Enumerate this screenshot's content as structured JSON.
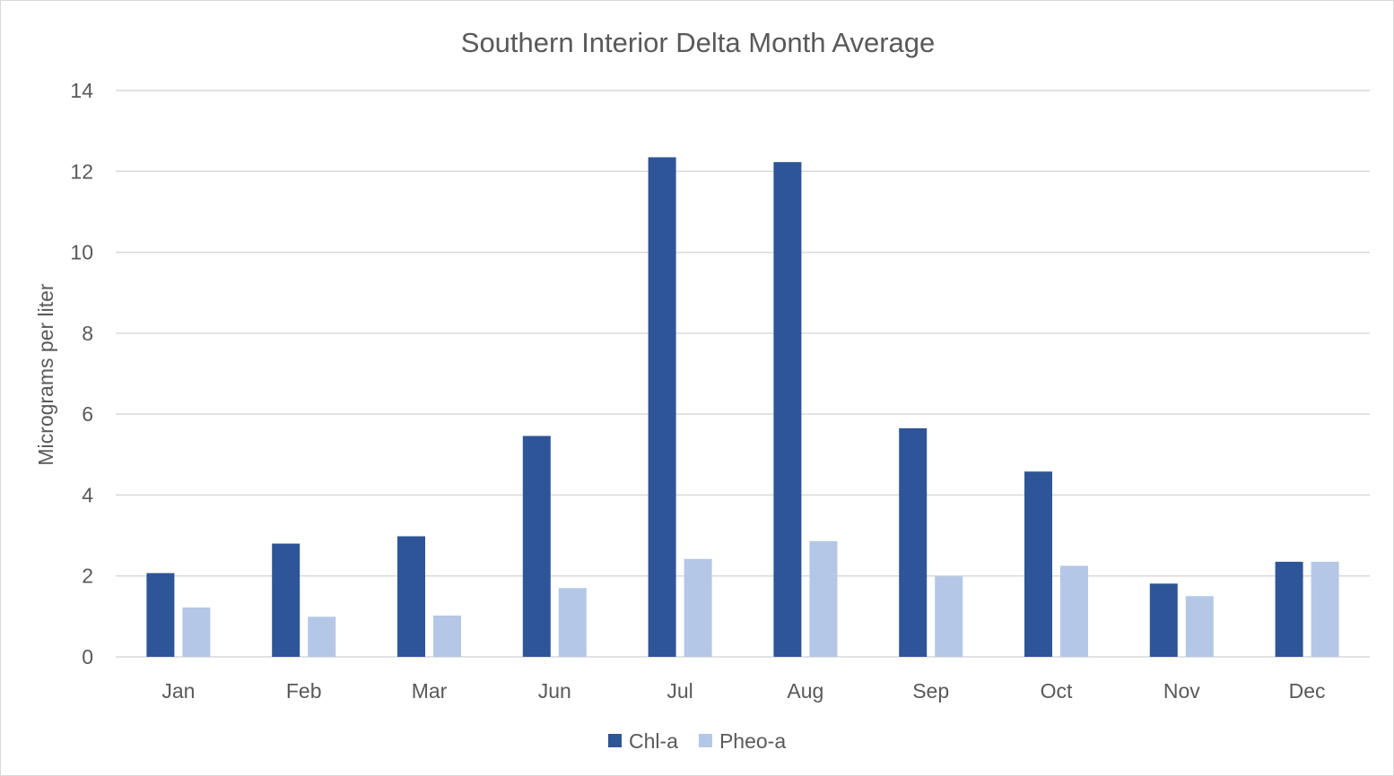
{
  "chart_data": {
    "type": "bar",
    "title": "Southern Interior Delta Month Average",
    "xlabel": "",
    "ylabel": "Micrograms per liter",
    "ylim": [
      0,
      14
    ],
    "yticks": [
      0,
      2,
      4,
      6,
      8,
      10,
      12,
      14
    ],
    "grid": true,
    "legend_position": "bottom",
    "categories": [
      "Jan",
      "Feb",
      "Mar",
      "Jun",
      "Jul",
      "Aug",
      "Sep",
      "Oct",
      "Nov",
      "Dec"
    ],
    "series": [
      {
        "name": "Chl-a",
        "color": "#2e5597",
        "values": [
          2.07,
          2.8,
          2.98,
          5.46,
          12.35,
          12.23,
          5.65,
          4.58,
          1.81,
          2.35
        ]
      },
      {
        "name": "Pheo-a",
        "color": "#b4c7e7",
        "values": [
          1.22,
          0.99,
          1.02,
          1.7,
          2.42,
          2.86,
          1.99,
          2.25,
          1.5,
          2.35
        ]
      }
    ]
  }
}
